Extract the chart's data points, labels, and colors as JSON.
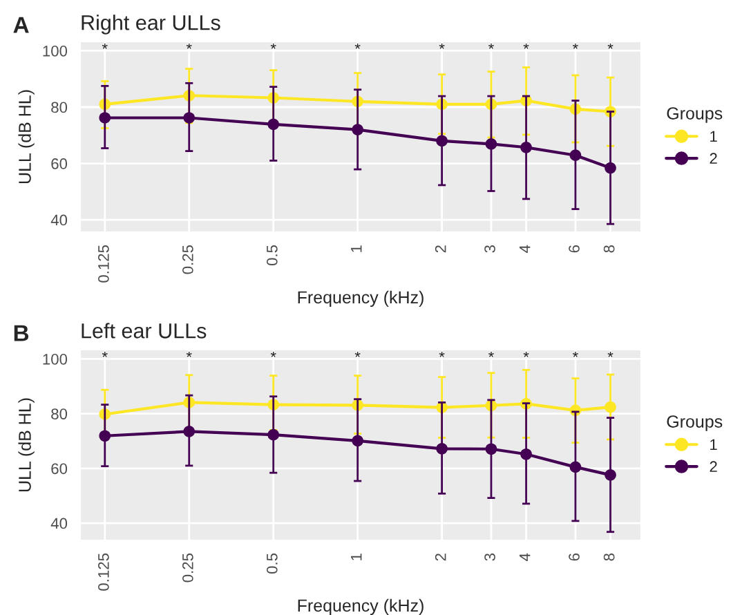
{
  "chart_data": [
    {
      "type": "line",
      "title": "Right ear ULLs",
      "xlabel": "Frequency (kHz)",
      "ylabel": "ULL (dB HL)",
      "legend_title": "Groups",
      "legend": "right",
      "grid": true,
      "marker": "circle",
      "log": "x",
      "x": [
        0.125,
        0.25,
        0.5,
        1,
        2,
        3,
        4,
        6,
        8
      ],
      "xlim": [
        0.102,
        10.3
      ],
      "xticks": [
        0.125,
        0.25,
        0.5,
        1,
        2,
        3,
        4,
        6,
        8
      ],
      "ylim": [
        35.6,
        103.3
      ],
      "yticks": [
        40,
        60,
        80,
        100
      ],
      "series": [
        {
          "name": "1",
          "color": "#fde725",
          "values": [
            81.0,
            84.1,
            83.3,
            82.0,
            81.0,
            81.0,
            82.3,
            79.3,
            78.4
          ],
          "errors": [
            [
              72.5,
              89.2
            ],
            [
              74.4,
              93.6
            ],
            [
              73.5,
              93.1
            ],
            [
              73.0,
              92.1
            ],
            [
              70.5,
              91.6
            ],
            [
              69.2,
              92.6
            ],
            [
              70.2,
              94.1
            ],
            [
              67.5,
              91.3
            ],
            [
              66.2,
              90.5
            ]
          ]
        },
        {
          "name": "2",
          "color": "#440154",
          "values": [
            76.2,
            76.2,
            73.9,
            72.0,
            68.0,
            66.9,
            65.7,
            62.9,
            58.4
          ],
          "errors": [
            [
              65.4,
              87.5
            ],
            [
              64.4,
              88.5
            ],
            [
              61.0,
              87.2
            ],
            [
              57.9,
              86.2
            ],
            [
              52.3,
              83.9
            ],
            [
              50.2,
              83.9
            ],
            [
              47.4,
              83.9
            ],
            [
              43.8,
              82.3
            ],
            [
              38.5,
              78.4
            ]
          ]
        }
      ],
      "annotations": [
        "A",
        "*",
        "*",
        "*",
        "*",
        "*",
        "*",
        "*",
        "*",
        "*"
      ]
    },
    {
      "type": "line",
      "title": "Left ear ULLs",
      "xlabel": "Frequency (kHz)",
      "ylabel": "ULL (dB HL)",
      "legend_title": "Groups",
      "legend": "right",
      "grid": true,
      "marker": "circle",
      "log": "x",
      "x": [
        0.125,
        0.25,
        0.5,
        1,
        2,
        3,
        4,
        6,
        8
      ],
      "xlim": [
        0.102,
        10.3
      ],
      "xticks": [
        0.125,
        0.25,
        0.5,
        1,
        2,
        3,
        4,
        6,
        8
      ],
      "ylim": [
        33.7,
        103.4
      ],
      "yticks": [
        40,
        60,
        80,
        100
      ],
      "series": [
        {
          "name": "1",
          "color": "#fde725",
          "values": [
            79.8,
            84.1,
            83.3,
            83.1,
            82.3,
            83.0,
            83.6,
            81.2,
            82.4
          ],
          "errors": [
            [
              70.6,
              88.7
            ],
            [
              74.0,
              94.1
            ],
            [
              74.0,
              93.9
            ],
            [
              72.7,
              93.9
            ],
            [
              71.2,
              93.4
            ],
            [
              71.3,
              94.9
            ],
            [
              71.2,
              96.0
            ],
            [
              69.4,
              92.9
            ],
            [
              70.6,
              94.3
            ]
          ]
        },
        {
          "name": "2",
          "color": "#440154",
          "values": [
            71.9,
            73.5,
            72.3,
            70.1,
            67.2,
            67.1,
            65.2,
            60.5,
            57.6
          ],
          "errors": [
            [
              60.8,
              83.3
            ],
            [
              61.0,
              86.7
            ],
            [
              58.4,
              86.3
            ],
            [
              55.4,
              85.3
            ],
            [
              50.8,
              84.1
            ],
            [
              49.2,
              85.0
            ],
            [
              47.1,
              83.8
            ],
            [
              40.8,
              80.7
            ],
            [
              36.8,
              78.5
            ]
          ]
        }
      ],
      "annotations": [
        "B",
        "*",
        "*",
        "*",
        "*",
        "*",
        "*",
        "*",
        "*",
        "*"
      ]
    }
  ]
}
